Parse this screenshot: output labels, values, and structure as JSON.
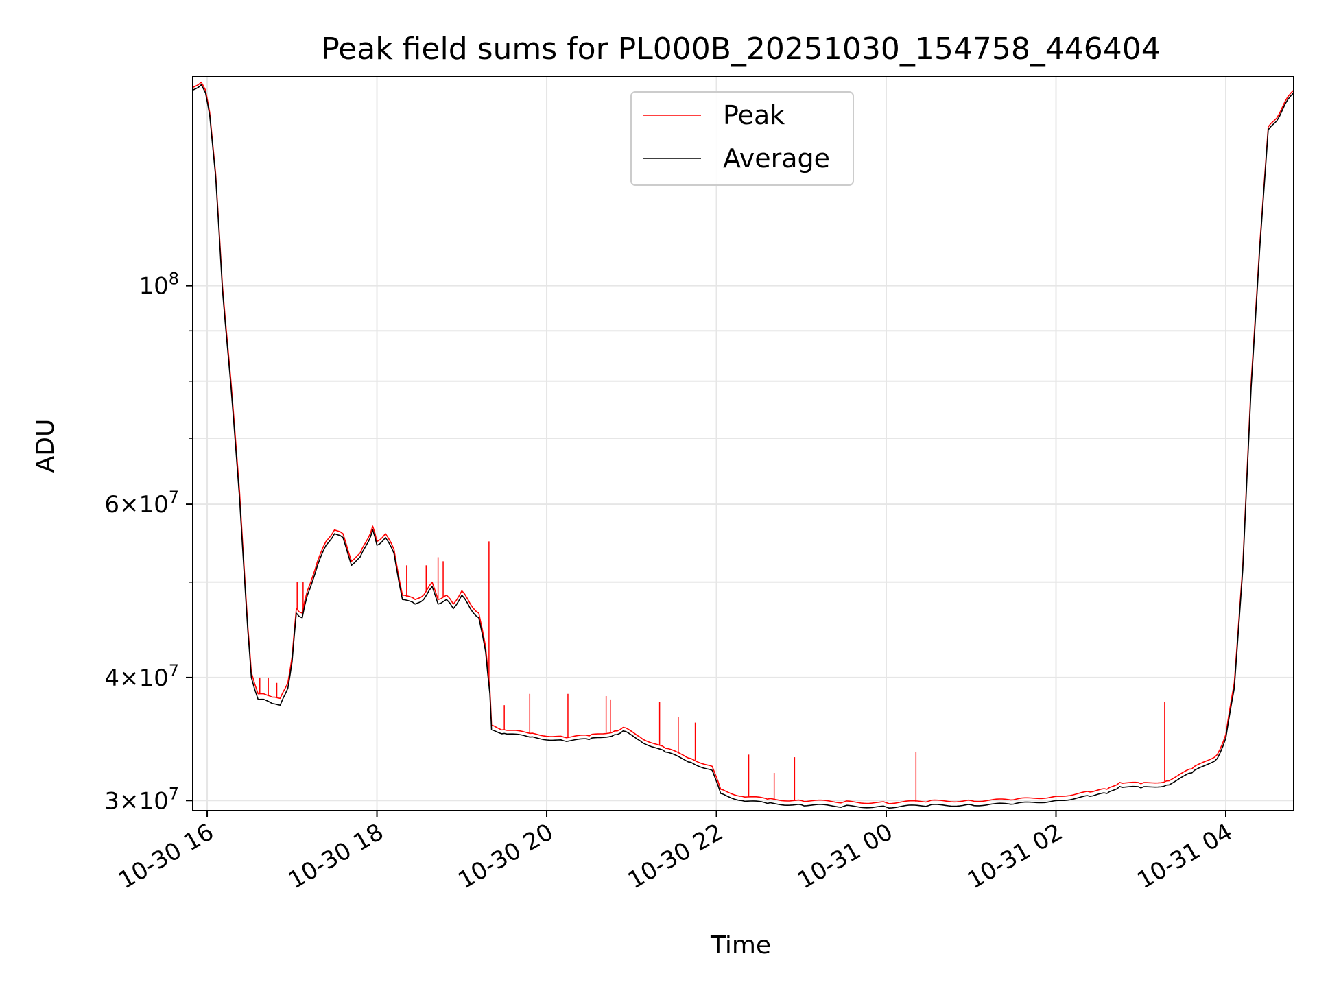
{
  "chart_data": {
    "type": "line",
    "title": "Peak field sums for PL000B_20251030_154758_446404",
    "xlabel": "Time",
    "ylabel": "ADU",
    "x_unit": "hours since 2025-10-30 00:00",
    "xlim": [
      15.83,
      28.8
    ],
    "ylim": [
      29300000,
      163000000
    ],
    "y_scale": "log",
    "grid": true,
    "legend_position": "top-center",
    "x_ticks": [
      {
        "value": 16,
        "label": "10-30 16"
      },
      {
        "value": 18,
        "label": "10-30 18"
      },
      {
        "value": 20,
        "label": "10-30 20"
      },
      {
        "value": 22,
        "label": "10-30 22"
      },
      {
        "value": 24,
        "label": "10-31 00"
      },
      {
        "value": 26,
        "label": "10-31 02"
      },
      {
        "value": 28,
        "label": "10-31 04"
      }
    ],
    "y_ticks_major": [
      {
        "value": 30000000,
        "base": "3",
        "exp": "7"
      },
      {
        "value": 40000000,
        "base": "4",
        "exp": "7"
      },
      {
        "value": 60000000,
        "base": "6",
        "exp": "7"
      },
      {
        "value": 100000000,
        "base": "",
        "exp": "8"
      }
    ],
    "y_ticks_minor": [
      50000000,
      70000000,
      80000000,
      90000000
    ],
    "series": [
      {
        "name": "Peak",
        "color": "#ff0000",
        "points": [
          [
            15.83,
            159000000
          ],
          [
            15.93,
            161000000
          ],
          [
            15.98,
            158000000
          ],
          [
            16.03,
            150000000
          ],
          [
            16.1,
            130000000
          ],
          [
            16.18,
            100000000
          ],
          [
            16.28,
            80000000
          ],
          [
            16.38,
            62000000
          ],
          [
            16.48,
            45000000
          ],
          [
            16.52,
            40500000
          ],
          [
            16.6,
            38500000
          ],
          [
            16.7,
            38400000
          ],
          [
            16.8,
            38200000
          ],
          [
            16.86,
            38100000
          ],
          [
            16.95,
            39500000
          ],
          [
            17.0,
            42000000
          ],
          [
            17.05,
            47000000
          ],
          [
            17.12,
            46500000
          ],
          [
            17.18,
            49000000
          ],
          [
            17.3,
            52500000
          ],
          [
            17.4,
            55000000
          ],
          [
            17.5,
            56500000
          ],
          [
            17.6,
            56000000
          ],
          [
            17.7,
            52500000
          ],
          [
            17.8,
            53500000
          ],
          [
            17.9,
            55500000
          ],
          [
            17.95,
            57000000
          ],
          [
            18.0,
            55000000
          ],
          [
            18.1,
            56000000
          ],
          [
            18.2,
            54000000
          ],
          [
            18.3,
            48500000
          ],
          [
            18.45,
            48000000
          ],
          [
            18.55,
            48500000
          ],
          [
            18.65,
            50000000
          ],
          [
            18.72,
            48000000
          ],
          [
            18.82,
            48500000
          ],
          [
            18.9,
            47500000
          ],
          [
            19.0,
            49000000
          ],
          [
            19.1,
            47500000
          ],
          [
            19.2,
            46500000
          ],
          [
            19.28,
            43000000
          ],
          [
            19.33,
            39000000
          ],
          [
            19.35,
            35800000
          ],
          [
            19.5,
            35400000
          ],
          [
            19.8,
            35100000
          ],
          [
            20.2,
            34800000
          ],
          [
            20.5,
            34900000
          ],
          [
            20.8,
            35300000
          ],
          [
            20.9,
            35600000
          ],
          [
            21.1,
            34800000
          ],
          [
            21.4,
            33900000
          ],
          [
            21.7,
            33100000
          ],
          [
            21.95,
            32500000
          ],
          [
            22.05,
            30800000
          ],
          [
            22.3,
            30300000
          ],
          [
            22.6,
            30100000
          ],
          [
            23.0,
            30000000
          ],
          [
            23.5,
            29900000
          ],
          [
            24.0,
            29850000
          ],
          [
            24.5,
            29950000
          ],
          [
            25.0,
            30000000
          ],
          [
            25.5,
            30050000
          ],
          [
            26.0,
            30300000
          ],
          [
            26.4,
            30600000
          ],
          [
            26.6,
            30800000
          ],
          [
            26.75,
            31300000
          ],
          [
            27.0,
            31200000
          ],
          [
            27.3,
            31400000
          ],
          [
            27.6,
            32300000
          ],
          [
            27.9,
            33400000
          ],
          [
            28.0,
            35000000
          ],
          [
            28.1,
            39500000
          ],
          [
            28.2,
            52000000
          ],
          [
            28.3,
            80000000
          ],
          [
            28.4,
            110000000
          ],
          [
            28.5,
            145000000
          ],
          [
            28.6,
            148000000
          ],
          [
            28.7,
            154000000
          ],
          [
            28.8,
            158000000
          ]
        ],
        "spikes": [
          [
            16.62,
            40000000
          ],
          [
            16.72,
            40000000
          ],
          [
            16.82,
            39500000
          ],
          [
            17.06,
            50000000
          ],
          [
            17.13,
            50000000
          ],
          [
            18.35,
            52000000
          ],
          [
            18.58,
            52000000
          ],
          [
            18.72,
            53000000
          ],
          [
            18.78,
            52500000
          ],
          [
            19.32,
            55000000
          ],
          [
            19.5,
            37500000
          ],
          [
            19.8,
            38500000
          ],
          [
            20.25,
            38500000
          ],
          [
            20.7,
            38300000
          ],
          [
            20.75,
            38000000
          ],
          [
            21.33,
            37800000
          ],
          [
            21.55,
            36500000
          ],
          [
            21.75,
            36000000
          ],
          [
            22.38,
            33400000
          ],
          [
            22.68,
            32000000
          ],
          [
            22.92,
            33200000
          ],
          [
            24.35,
            33600000
          ],
          [
            27.28,
            37800000
          ]
        ]
      },
      {
        "name": "Average",
        "color": "#000000",
        "points": [
          [
            15.83,
            158000000
          ],
          [
            15.93,
            160000000
          ],
          [
            15.98,
            157000000
          ],
          [
            16.03,
            149000000
          ],
          [
            16.1,
            129000000
          ],
          [
            16.18,
            99000000
          ],
          [
            16.28,
            79000000
          ],
          [
            16.38,
            61000000
          ],
          [
            16.48,
            44500000
          ],
          [
            16.52,
            40000000
          ],
          [
            16.6,
            38000000
          ],
          [
            16.7,
            37900000
          ],
          [
            16.8,
            37600000
          ],
          [
            16.86,
            37500000
          ],
          [
            16.95,
            39000000
          ],
          [
            17.0,
            41500000
          ],
          [
            17.05,
            46500000
          ],
          [
            17.12,
            46000000
          ],
          [
            17.18,
            48500000
          ],
          [
            17.3,
            52000000
          ],
          [
            17.4,
            54500000
          ],
          [
            17.5,
            56000000
          ],
          [
            17.6,
            55500000
          ],
          [
            17.7,
            52000000
          ],
          [
            17.8,
            53000000
          ],
          [
            17.9,
            55000000
          ],
          [
            17.95,
            56500000
          ],
          [
            18.0,
            54500000
          ],
          [
            18.1,
            55500000
          ],
          [
            18.2,
            53500000
          ],
          [
            18.3,
            48000000
          ],
          [
            18.45,
            47500000
          ],
          [
            18.55,
            48000000
          ],
          [
            18.65,
            49500000
          ],
          [
            18.72,
            47500000
          ],
          [
            18.82,
            48000000
          ],
          [
            18.9,
            47000000
          ],
          [
            19.0,
            48500000
          ],
          [
            19.1,
            47000000
          ],
          [
            19.2,
            46000000
          ],
          [
            19.28,
            42500000
          ],
          [
            19.33,
            38500000
          ],
          [
            19.35,
            35400000
          ],
          [
            19.5,
            35100000
          ],
          [
            19.8,
            34800000
          ],
          [
            20.2,
            34500000
          ],
          [
            20.5,
            34600000
          ],
          [
            20.8,
            35000000
          ],
          [
            20.9,
            35300000
          ],
          [
            21.1,
            34500000
          ],
          [
            21.4,
            33600000
          ],
          [
            21.7,
            32800000
          ],
          [
            21.95,
            32200000
          ],
          [
            22.05,
            30500000
          ],
          [
            22.3,
            30000000
          ],
          [
            22.6,
            29800000
          ],
          [
            23.0,
            29700000
          ],
          [
            23.5,
            29600000
          ],
          [
            24.0,
            29550000
          ],
          [
            24.5,
            29650000
          ],
          [
            25.0,
            29700000
          ],
          [
            25.5,
            29750000
          ],
          [
            26.0,
            30000000
          ],
          [
            26.4,
            30300000
          ],
          [
            26.6,
            30500000
          ],
          [
            26.75,
            31000000
          ],
          [
            27.0,
            30900000
          ],
          [
            27.3,
            31100000
          ],
          [
            27.6,
            32000000
          ],
          [
            27.9,
            33100000
          ],
          [
            28.0,
            34700000
          ],
          [
            28.1,
            39000000
          ],
          [
            28.2,
            51500000
          ],
          [
            28.3,
            79000000
          ],
          [
            28.4,
            109000000
          ],
          [
            28.5,
            144000000
          ],
          [
            28.6,
            147000000
          ],
          [
            28.7,
            153000000
          ],
          [
            28.8,
            157000000
          ]
        ]
      }
    ]
  }
}
